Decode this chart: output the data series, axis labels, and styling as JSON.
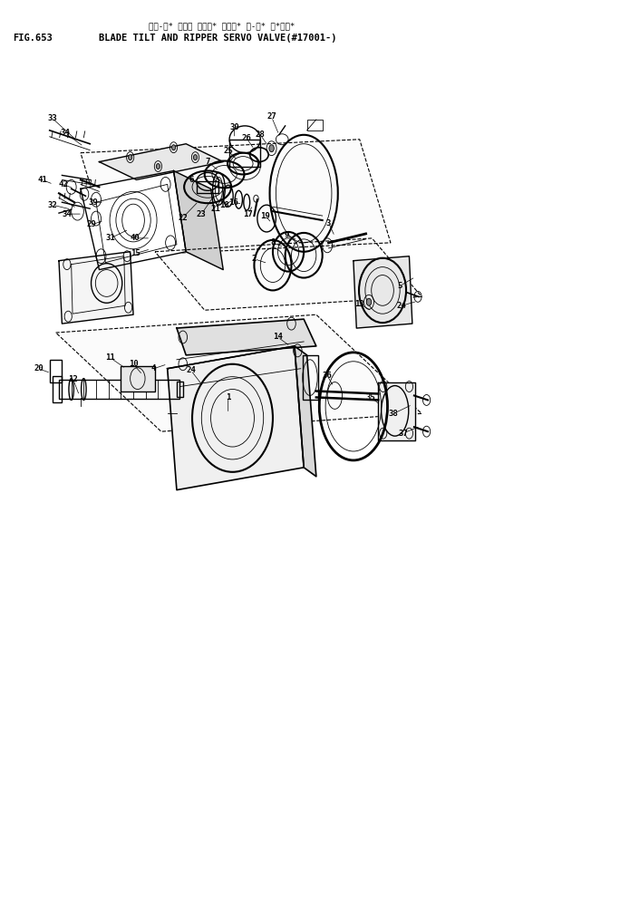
{
  "title_line1": "ブレ-ド* チルト オヨビ* リッパ* サ-ボ* バ*ルブ*",
  "title_line2": "BLADE TILT AND RIPPER SERVO VALVE(#17001-)",
  "fig_label": "FIG.653",
  "bg_color": "#ffffff",
  "line_color": "#000000",
  "text_color": "#000000"
}
